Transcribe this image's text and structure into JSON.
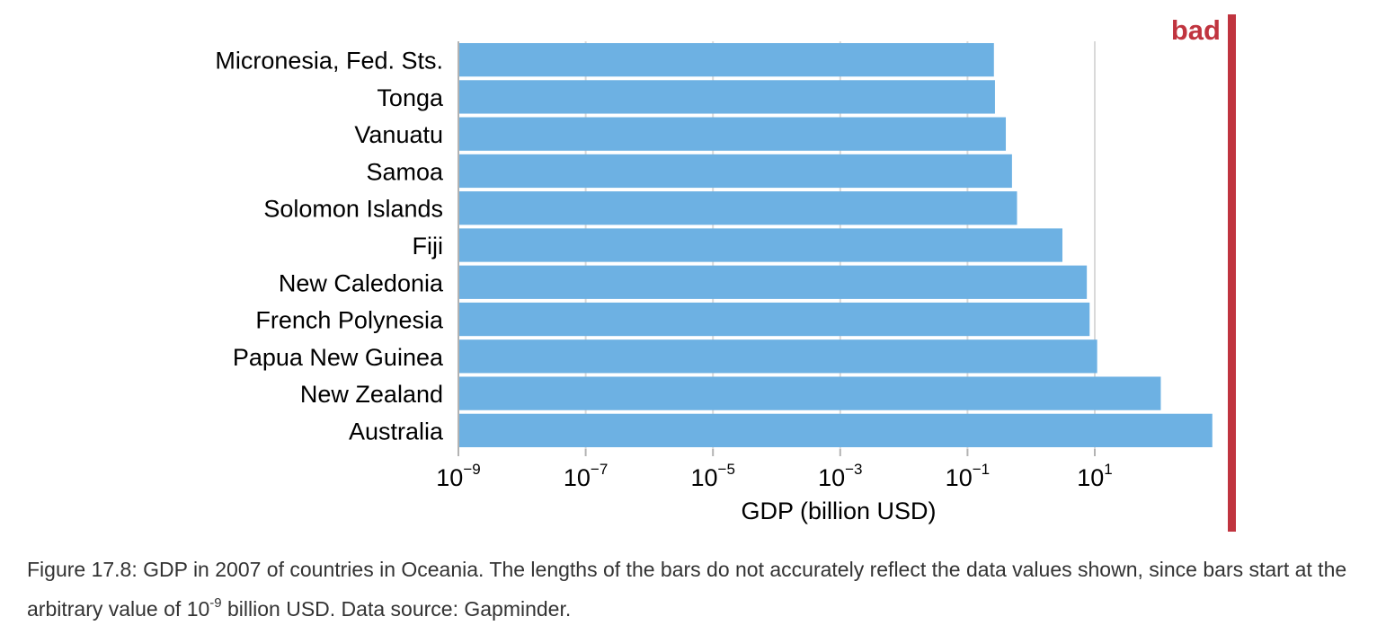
{
  "chart_data": {
    "type": "bar",
    "orientation": "horizontal",
    "categories": [
      "Micronesia, Fed. Sts.",
      "Tonga",
      "Vanuatu",
      "Samoa",
      "Solomon Islands",
      "Fiji",
      "New Caledonia",
      "French Polynesia",
      "Papua New Guinea",
      "New Zealand",
      "Australia"
    ],
    "values": [
      0.26,
      0.27,
      0.4,
      0.5,
      0.6,
      3.1,
      7.5,
      8.3,
      10.9,
      109,
      703
    ],
    "xlabel": "GDP (billion USD)",
    "x_scale": "log",
    "xlim": [
      1e-09,
      15000
    ],
    "bar_baseline": 1e-09,
    "x_ticks": [
      {
        "value": 1e-09,
        "base": "10",
        "exp": "−9"
      },
      {
        "value": 1e-07,
        "base": "10",
        "exp": "−7"
      },
      {
        "value": 1e-05,
        "base": "10",
        "exp": "−5"
      },
      {
        "value": 0.001,
        "base": "10",
        "exp": "−3"
      },
      {
        "value": 0.1,
        "base": "10",
        "exp": "−1"
      },
      {
        "value": 10,
        "base": "10",
        "exp": "1"
      }
    ],
    "grid": true,
    "bar_color": "#6db1e3",
    "grid_color": "#d9d9d9"
  },
  "badge": {
    "label": "bad",
    "color": "#c0343f"
  },
  "caption": {
    "before": "Figure 17.8: GDP in 2007 of countries in Oceania. The lengths of the bars do not accurately reflect the data values shown, since bars start at the arbitrary value of 10",
    "sup": "-9",
    "after": " billion USD. Data source: Gapminder."
  }
}
